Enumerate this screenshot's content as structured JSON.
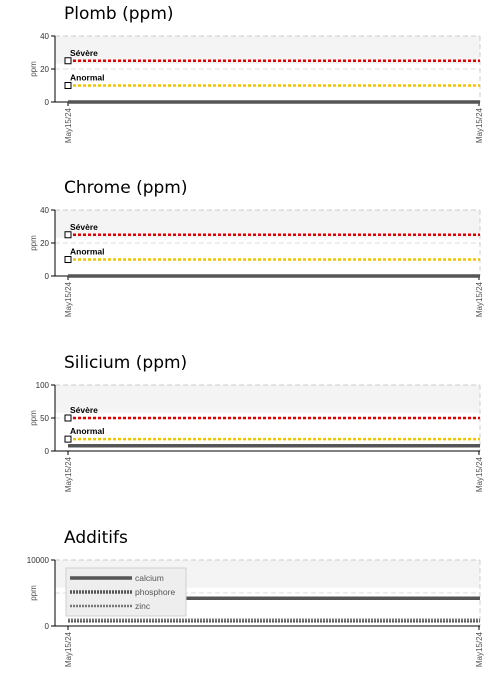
{
  "chart_data": [
    {
      "type": "line",
      "title": "Plomb (ppm)",
      "ylabel": "ppm",
      "ylim": [
        0,
        40
      ],
      "yticks": [
        "0",
        "20",
        "40"
      ],
      "xticks": [
        "May15/24",
        "May15/24"
      ],
      "thresholds": [
        {
          "name": "Sévère",
          "value": 25,
          "color": "#e00000"
        },
        {
          "name": "Anormal",
          "value": 10,
          "color": "#f2c400"
        }
      ],
      "series": [
        {
          "values": [
            0,
            0
          ],
          "color": "#555555",
          "style": "solid"
        }
      ]
    },
    {
      "type": "line",
      "title": "Chrome (ppm)",
      "ylabel": "ppm",
      "ylim": [
        0,
        40
      ],
      "yticks": [
        "0",
        "20",
        "40"
      ],
      "xticks": [
        "May15/24",
        "May15/24"
      ],
      "thresholds": [
        {
          "name": "Sévère",
          "value": 25,
          "color": "#e00000"
        },
        {
          "name": "Anormal",
          "value": 10,
          "color": "#f2c400"
        }
      ],
      "series": [
        {
          "values": [
            0,
            0
          ],
          "color": "#555555",
          "style": "solid"
        }
      ]
    },
    {
      "type": "line",
      "title": "Silicium (ppm)",
      "ylabel": "ppm",
      "ylim": [
        0,
        100
      ],
      "yticks": [
        "0",
        "50",
        "100"
      ],
      "xticks": [
        "May15/24",
        "May15/24"
      ],
      "thresholds": [
        {
          "name": "Sévère",
          "value": 50,
          "color": "#e00000"
        },
        {
          "name": "Anormal",
          "value": 18,
          "color": "#f2c400"
        }
      ],
      "series": [
        {
          "values": [
            8,
            8
          ],
          "color": "#555555",
          "style": "solid"
        }
      ]
    },
    {
      "type": "line",
      "title": "Additifs",
      "ylabel": "ppm",
      "ylim": [
        0,
        10000
      ],
      "yticks": [
        "0",
        "10000"
      ],
      "xticks": [
        "May15/24",
        "May15/24"
      ],
      "thresholds": [],
      "legend": "top-left",
      "series": [
        {
          "name": "calcium",
          "values": [
            4200,
            4200
          ],
          "color": "#555555",
          "style": "solid"
        },
        {
          "name": "phosphore",
          "values": [
            800,
            800
          ],
          "color": "#555555",
          "style": "dotted"
        },
        {
          "name": "zinc",
          "values": [
            950,
            950
          ],
          "color": "#777777",
          "style": "dashed"
        }
      ]
    }
  ]
}
